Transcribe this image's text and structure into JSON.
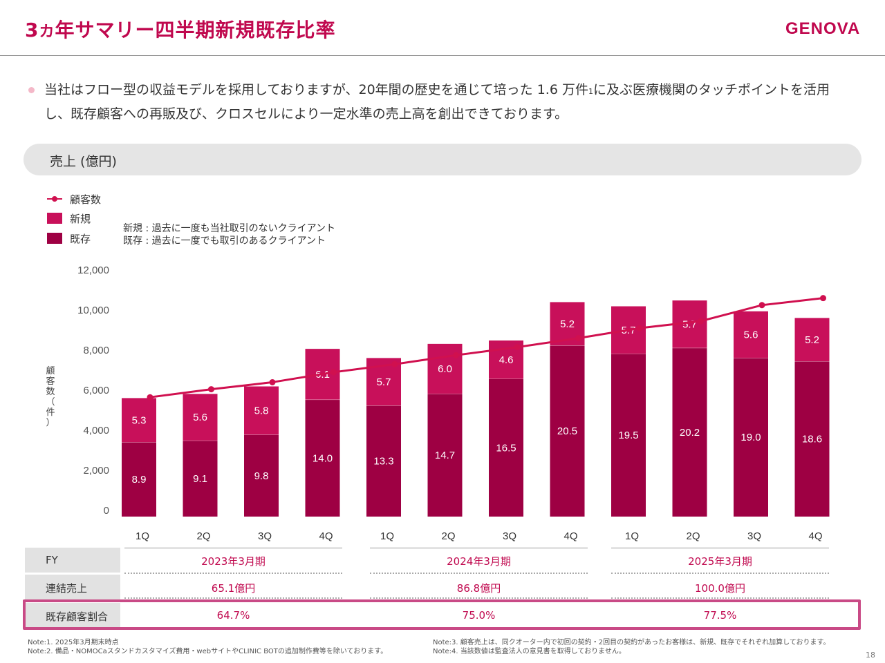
{
  "header": {
    "title_prefix": "3",
    "title_small": "カ",
    "title_rest": "年サマリー四半期新規既存比率",
    "logo": "GENOVA"
  },
  "lead": {
    "text_a": "当社はフロー型の収益モデルを採用しておりますが、20年間の歴史を通じて培った 1.6 万件",
    "sup": "1",
    "text_b": "に及ぶ医療機関のタッチポイントを活用し、既存顧客への再販及び、クロスセルにより一定水準の売上高を創出できております。"
  },
  "section_label": "売上 (億円)",
  "legend": {
    "customers": "顧客数",
    "new": "新規",
    "existing": "既存"
  },
  "definitions": {
    "new": "新規 : 過去に一度も当社取引のないクライアント",
    "existing": "既存 : 過去に一度でも取引のあるクライアント"
  },
  "colors": {
    "accent": "#c0084e",
    "new": "#c8105a",
    "existing": "#9e0043",
    "line": "#d0104f",
    "highlight": "#c94a86"
  },
  "chart_data": {
    "type": "bar",
    "stacked": true,
    "categories": [
      "1Q",
      "2Q",
      "3Q",
      "4Q",
      "1Q",
      "2Q",
      "3Q",
      "4Q",
      "1Q",
      "2Q",
      "3Q",
      "4Q"
    ],
    "series": [
      {
        "name": "既存",
        "values": [
          8.9,
          9.1,
          9.8,
          14.0,
          13.3,
          14.7,
          16.5,
          20.5,
          19.5,
          20.2,
          19.0,
          18.6
        ]
      },
      {
        "name": "新規",
        "values": [
          5.3,
          5.6,
          5.8,
          6.1,
          5.7,
          6.0,
          4.6,
          5.2,
          5.7,
          5.7,
          5.6,
          5.2
        ]
      }
    ],
    "line_series": {
      "name": "顧客数",
      "values": [
        5200,
        5600,
        5950,
        6450,
        6850,
        7300,
        7700,
        8150,
        8650,
        9000,
        9800,
        10150
      ]
    },
    "y_axis": {
      "label": "顧客数（件）",
      "range": [
        0,
        12000
      ],
      "ticks": [
        "0",
        "2,000",
        "4,000",
        "6,000",
        "8,000",
        "10,000",
        "12,000"
      ]
    },
    "y_axis_revenue_max": 28.8,
    "grid": false
  },
  "table": {
    "fy_label": "FY",
    "sales_label": "連結売上",
    "ratio_label": "既存顧客割合",
    "years": [
      {
        "fy": "2023年3月期",
        "sales": "65.1億円",
        "ratio": "64.7%"
      },
      {
        "fy": "2024年3月期",
        "sales": "86.8億円",
        "ratio": "75.0%"
      },
      {
        "fy": "2025年3月期",
        "sales": "100.0億円",
        "ratio": "77.5%"
      }
    ]
  },
  "notes": {
    "left": [
      "Note:1. 2025年3月期末時点",
      "Note:2. 備品・NOMOCaスタンドカスタマイズ費用・webサイトやCLINIC BOTの追加制作費等を除いております。"
    ],
    "right": [
      "Note:3. 顧客売上は、同クオーター内で初回の契約・2回目の契約があったお客様は、新規、既存でそれぞれ加算しております。",
      "Note:4. 当該数値は監査法人の意見書を取得しておりません。"
    ]
  },
  "page_number": "18"
}
